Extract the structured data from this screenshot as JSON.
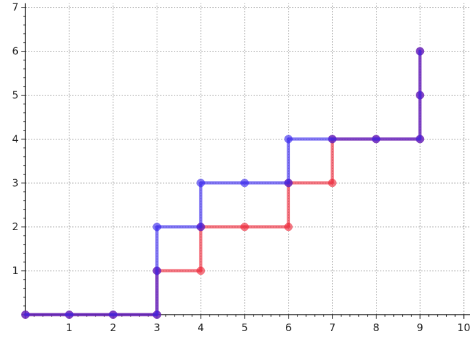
{
  "chart_data": {
    "type": "line",
    "title": "",
    "xlabel": "",
    "ylabel": "",
    "xlim": [
      0,
      10
    ],
    "ylim": [
      0,
      7
    ],
    "xticks": [
      "1",
      "2",
      "3",
      "4",
      "5",
      "6",
      "7",
      "8",
      "9",
      "10"
    ],
    "yticks": [
      "1",
      "2",
      "3",
      "4",
      "5",
      "6",
      "7"
    ],
    "grid": true,
    "legend": "none",
    "series": [
      {
        "color": "#ee2233",
        "points": [
          [
            0,
            0
          ],
          [
            1,
            0
          ],
          [
            2,
            0
          ],
          [
            3,
            0
          ],
          [
            3,
            1
          ],
          [
            4,
            1
          ],
          [
            4,
            2
          ],
          [
            5,
            2
          ],
          [
            6,
            2
          ],
          [
            6,
            3
          ],
          [
            7,
            3
          ],
          [
            7,
            4
          ],
          [
            8,
            4
          ],
          [
            9,
            4
          ],
          [
            9,
            5
          ],
          [
            9,
            6
          ]
        ]
      },
      {
        "color": "#3322ee",
        "points": [
          [
            0,
            0
          ],
          [
            1,
            0
          ],
          [
            2,
            0
          ],
          [
            3,
            0
          ],
          [
            3,
            1
          ],
          [
            3,
            2
          ],
          [
            4,
            2
          ],
          [
            4,
            3
          ],
          [
            5,
            3
          ],
          [
            6,
            3
          ],
          [
            6,
            4
          ],
          [
            7,
            4
          ],
          [
            8,
            4
          ],
          [
            9,
            4
          ],
          [
            9,
            5
          ],
          [
            9,
            6
          ]
        ]
      }
    ]
  }
}
